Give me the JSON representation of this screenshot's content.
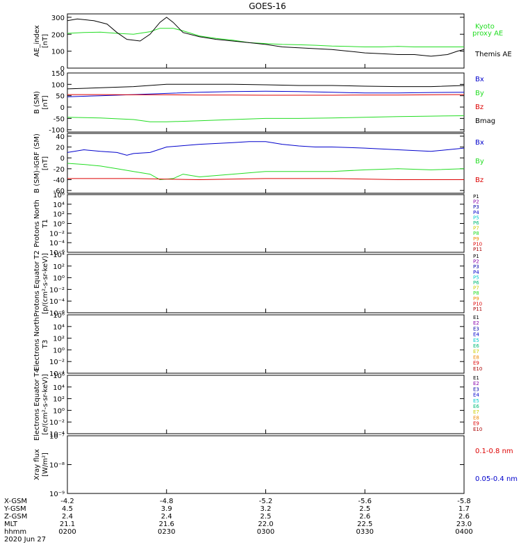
{
  "title": "GOES-16",
  "x_axis": {
    "row_labels": [
      "X-GSM",
      "Y-GSM",
      "Z-GSM",
      "MLT",
      "hhmm"
    ],
    "columns": [
      {
        "values": [
          "-4.2",
          "4.5",
          "2.4",
          "21.1",
          "0200"
        ]
      },
      {
        "values": [
          "-4.8",
          "3.9",
          "2.4",
          "21.6",
          "0230"
        ]
      },
      {
        "values": [
          "-5.2",
          "3.2",
          "2.5",
          "22.0",
          "0300"
        ]
      },
      {
        "values": [
          "-5.6",
          "2.5",
          "2.6",
          "22.5",
          "0330"
        ]
      },
      {
        "values": [
          "-5.8",
          "1.7",
          "2.6",
          "23.0",
          "0400"
        ]
      }
    ],
    "date": "2020 Jun 27"
  },
  "colors": {
    "black": "#000000",
    "blue": "#0000cc",
    "green": "#22dd22",
    "red": "#dd0000",
    "purple": "#8800aa",
    "darkblue": "#0000aa",
    "cyan": "#00cccc",
    "teal": "#00bb77",
    "yellow": "#cccc00",
    "orange": "#ee8800",
    "darkred": "#aa0000"
  },
  "chart_data": [
    {
      "type": "line",
      "ylabel": "AE_index [nT]",
      "ylim": [
        0,
        320
      ],
      "ticks": [
        "0",
        "100",
        "200",
        "300"
      ],
      "series": [
        {
          "name": "Kyoto proxy AE",
          "color": "green",
          "x": [
            0,
            5,
            10,
            15,
            20,
            25,
            28,
            32,
            35,
            40,
            45,
            50,
            55,
            60,
            65,
            70,
            75,
            80,
            85,
            90,
            95,
            100,
            105,
            110,
            115,
            120
          ],
          "y": [
            205,
            210,
            212,
            205,
            200,
            215,
            235,
            235,
            220,
            190,
            175,
            165,
            150,
            145,
            140,
            138,
            135,
            130,
            128,
            125,
            125,
            128,
            125,
            125,
            125,
            125
          ]
        },
        {
          "name": "Themis AE",
          "color": "black",
          "x": [
            0,
            3,
            8,
            12,
            15,
            18,
            22,
            25,
            28,
            30,
            32,
            35,
            40,
            45,
            50,
            55,
            60,
            65,
            70,
            75,
            80,
            85,
            90,
            95,
            100,
            105,
            110,
            115,
            118,
            120
          ],
          "y": [
            280,
            290,
            280,
            260,
            210,
            170,
            160,
            200,
            270,
            300,
            270,
            210,
            185,
            170,
            160,
            150,
            140,
            125,
            120,
            115,
            110,
            100,
            90,
            85,
            80,
            80,
            70,
            80,
            100,
            110
          ]
        }
      ],
      "legend": [
        "Kyoto",
        "proxy AE",
        "Themis AE"
      ]
    },
    {
      "type": "line",
      "ylabel": "B (SM) [nT]",
      "ylim": [
        -110,
        150
      ],
      "ticks": [
        "-100",
        "-50",
        "0",
        "50",
        "100",
        "150"
      ],
      "series": [
        {
          "name": "Bmag",
          "color": "black",
          "x": [
            0,
            10,
            20,
            30,
            40,
            50,
            60,
            70,
            80,
            90,
            100,
            110,
            120
          ],
          "y": [
            80,
            85,
            90,
            100,
            100,
            100,
            98,
            95,
            95,
            92,
            90,
            90,
            95
          ]
        },
        {
          "name": "Bx",
          "color": "blue",
          "x": [
            0,
            10,
            20,
            30,
            40,
            50,
            60,
            70,
            80,
            90,
            100,
            110,
            120
          ],
          "y": [
            45,
            50,
            55,
            60,
            65,
            68,
            70,
            68,
            65,
            62,
            62,
            64,
            65
          ]
        },
        {
          "name": "By",
          "color": "green",
          "x": [
            0,
            10,
            20,
            25,
            30,
            40,
            50,
            60,
            70,
            80,
            90,
            100,
            110,
            120
          ],
          "y": [
            -45,
            -48,
            -55,
            -65,
            -65,
            -60,
            -55,
            -50,
            -50,
            -48,
            -45,
            -42,
            -40,
            -38
          ]
        },
        {
          "name": "Bz",
          "color": "red",
          "x": [
            0,
            10,
            20,
            30,
            40,
            50,
            60,
            70,
            80,
            90,
            100,
            110,
            120
          ],
          "y": [
            55,
            55,
            54,
            54,
            53,
            53,
            52,
            52,
            52,
            53,
            53,
            54,
            55
          ]
        }
      ],
      "legend": [
        "Bx",
        "By",
        "Bz",
        "Bmag"
      ]
    },
    {
      "type": "line",
      "ylabel": "B (SM)-IGRF (SM) [nT]",
      "ylim": [
        -65,
        45
      ],
      "ticks": [
        "-60",
        "-40",
        "-20",
        "0",
        "20",
        "40"
      ],
      "series": [
        {
          "name": "Bx",
          "color": "blue",
          "x": [
            0,
            5,
            10,
            15,
            18,
            20,
            25,
            30,
            40,
            50,
            55,
            60,
            65,
            70,
            75,
            80,
            90,
            100,
            110,
            120
          ],
          "y": [
            10,
            15,
            12,
            10,
            5,
            8,
            10,
            20,
            25,
            28,
            30,
            30,
            25,
            22,
            20,
            20,
            18,
            15,
            12,
            18
          ]
        },
        {
          "name": "By",
          "color": "green",
          "x": [
            0,
            5,
            10,
            15,
            20,
            25,
            28,
            32,
            35,
            40,
            50,
            60,
            70,
            80,
            90,
            100,
            110,
            120
          ],
          "y": [
            -10,
            -12,
            -15,
            -20,
            -25,
            -30,
            -40,
            -38,
            -30,
            -35,
            -30,
            -25,
            -25,
            -25,
            -22,
            -20,
            -22,
            -20
          ]
        },
        {
          "name": "Bz",
          "color": "red",
          "x": [
            0,
            20,
            40,
            60,
            80,
            100,
            120
          ],
          "y": [
            -38,
            -38,
            -40,
            -38,
            -38,
            -40,
            -40
          ]
        }
      ],
      "legend": [
        "Bx",
        "By",
        "Bz"
      ]
    },
    {
      "type": "line",
      "ylabel": "Protons North T1",
      "yscale": "log",
      "ticks": [
        "10⁶",
        "10⁴",
        "10²",
        "10⁰",
        "10⁻²",
        "10⁻⁴",
        "10⁻⁶"
      ],
      "legend": [
        "P1",
        "P2",
        "P3",
        "P4",
        "P5",
        "P6",
        "P7",
        "P8",
        "P9",
        "P10",
        "P11"
      ]
    },
    {
      "type": "line",
      "ylabel": "Protons Equator T2 [p/(cm²-s-sr-keV)]",
      "yscale": "log",
      "ticks": [
        "10⁴",
        "10²",
        "10⁰",
        "10⁻²",
        "10⁻⁴",
        "10⁻⁶"
      ],
      "legend": [
        "P1",
        "P2",
        "P3",
        "P4",
        "P5",
        "P6",
        "P7",
        "P8",
        "P9",
        "P10",
        "P11"
      ]
    },
    {
      "type": "line",
      "ylabel": "Electrons North T3",
      "yscale": "log",
      "ticks": [
        "10⁶",
        "10⁴",
        "10²",
        "10⁰",
        "10⁻²",
        "10⁻⁴"
      ],
      "legend": [
        "E1",
        "E2",
        "E3",
        "E4",
        "E5",
        "E6",
        "E7",
        "E8",
        "E9",
        "E10"
      ]
    },
    {
      "type": "line",
      "ylabel": "Electrons Equator T4 [e/(cm²-s-sr-keV)]",
      "yscale": "log",
      "ticks": [
        "10⁶",
        "10⁴",
        "10²",
        "10⁰",
        "10⁻²",
        "10⁻⁴"
      ],
      "legend": [
        "E1",
        "E2",
        "E3",
        "E4",
        "E5",
        "E6",
        "E7",
        "E8",
        "E9",
        "E10"
      ]
    },
    {
      "type": "line",
      "ylabel": "Xray flux [W/m²]",
      "yscale": "log",
      "ticks": [
        "10⁻⁷",
        "10⁻⁸",
        "10⁻⁹"
      ],
      "legend": [
        "0.1-0.8 nm",
        "0.05-0.4 nm"
      ]
    }
  ]
}
